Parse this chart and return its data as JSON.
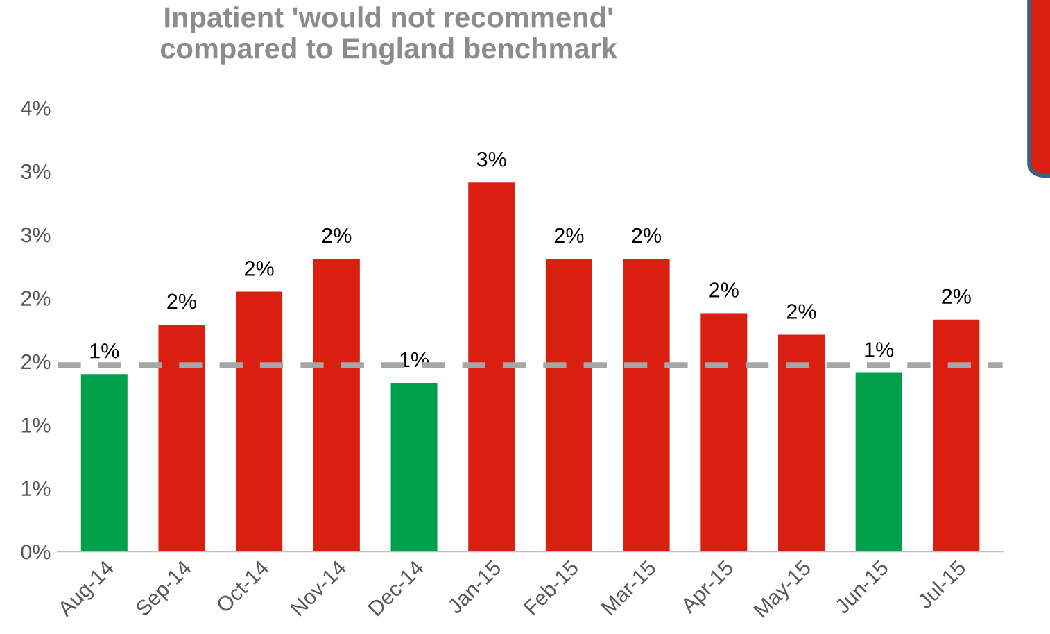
{
  "chart_data": {
    "type": "bar",
    "title": "Inpatient 'would not recommend'\ncompared to England benchmark",
    "categories": [
      "Aug-14",
      "Sep-14",
      "Oct-14",
      "Nov-14",
      "Dec-14",
      "Jan-15",
      "Feb-15",
      "Mar-15",
      "Apr-15",
      "May-15",
      "Jun-15",
      "Jul-15"
    ],
    "values": [
      1.4,
      1.79,
      2.05,
      2.31,
      1.33,
      2.91,
      2.31,
      2.31,
      1.88,
      1.71,
      1.41,
      1.83
    ],
    "colors": [
      "#00a04a",
      "#d92010",
      "#d92010",
      "#d92010",
      "#00a04a",
      "#d92010",
      "#d92010",
      "#d92010",
      "#d92010",
      "#d92010",
      "#00a04a",
      "#d92010"
    ],
    "value_labels": [
      "1%",
      "2%",
      "2%",
      "2%",
      "1%",
      "3%",
      "2%",
      "2%",
      "2%",
      "2%",
      "1%",
      "2%"
    ],
    "ylim": [
      0,
      3.5
    ],
    "yticks": [
      {
        "value": 0,
        "label": "0%"
      },
      {
        "value": 0.5,
        "label": "1%"
      },
      {
        "value": 1,
        "label": "1%"
      },
      {
        "value": 1.5,
        "label": "2%"
      },
      {
        "value": 2,
        "label": "2%"
      },
      {
        "value": 2.5,
        "label": "3%"
      },
      {
        "value": 3,
        "label": "3%"
      },
      {
        "value": 3.5,
        "label": "4%"
      }
    ],
    "ref_lines": [
      {
        "axis": "y",
        "value": 1.47,
        "color": "#a6a6a6",
        "line_style": "dashed"
      }
    ],
    "grid": false,
    "legend": false
  }
}
